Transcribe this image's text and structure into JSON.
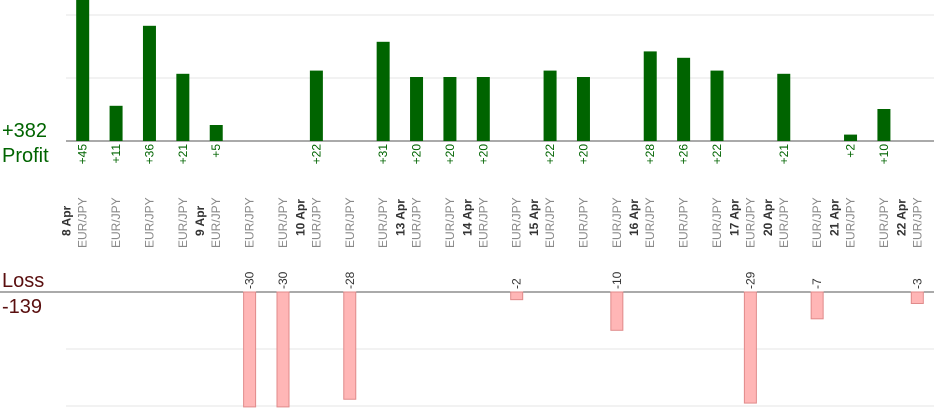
{
  "summary": {
    "profit_total": "+382",
    "profit_label": "Profit",
    "loss_label": "Loss",
    "loss_total": "-139"
  },
  "chart_data": {
    "type": "bar",
    "title": "",
    "colors": {
      "profit": "#006400",
      "loss": "#ffb6b6",
      "loss_border": "#e08a8a",
      "axis": "#555555",
      "grid": "#e6e6e6"
    },
    "columns": [
      {
        "date": "8 Apr",
        "pair": "EUR/JPY",
        "profit": 45,
        "label": "+45"
      },
      {
        "date": "",
        "pair": "EUR/JPY",
        "profit": 11,
        "label": "+11"
      },
      {
        "date": "",
        "pair": "EUR/JPY",
        "profit": 36,
        "label": "+36"
      },
      {
        "date": "",
        "pair": "EUR/JPY",
        "profit": 21,
        "label": "+21"
      },
      {
        "date": "9 Apr",
        "pair": "EUR/JPY",
        "profit": 5,
        "label": "+5"
      },
      {
        "date": "",
        "pair": "EUR/JPY",
        "loss": -30,
        "label": "-30"
      },
      {
        "date": "",
        "pair": "EUR/JPY",
        "loss": -30,
        "label": "-30"
      },
      {
        "date": "10 Apr",
        "pair": "EUR/JPY",
        "profit": 22,
        "label": "+22"
      },
      {
        "date": "",
        "pair": "EUR/JPY",
        "loss": -28,
        "label": "-28"
      },
      {
        "date": "",
        "pair": "EUR/JPY",
        "profit": 31,
        "label": "+31"
      },
      {
        "date": "13 Apr",
        "pair": "EUR/JPY",
        "profit": 20,
        "label": "+20"
      },
      {
        "date": "",
        "pair": "EUR/JPY",
        "profit": 20,
        "label": "+20"
      },
      {
        "date": "14 Apr",
        "pair": "EUR/JPY",
        "profit": 20,
        "label": "+20"
      },
      {
        "date": "",
        "pair": "EUR/JPY",
        "loss": -2,
        "label": "-2"
      },
      {
        "date": "15 Apr",
        "pair": "EUR/JPY",
        "profit": 22,
        "label": "+22"
      },
      {
        "date": "",
        "pair": "EUR/JPY",
        "profit": 20,
        "label": "+20"
      },
      {
        "date": "",
        "pair": "EUR/JPY",
        "loss": -10,
        "label": "-10"
      },
      {
        "date": "16 Apr",
        "pair": "EUR/JPY",
        "profit": 28,
        "label": "+28"
      },
      {
        "date": "",
        "pair": "EUR/JPY",
        "profit": 26,
        "label": "+26"
      },
      {
        "date": "",
        "pair": "EUR/JPY",
        "profit": 22,
        "label": "+22"
      },
      {
        "date": "17 Apr",
        "pair": "EUR/JPY",
        "loss": -29,
        "label": "-29"
      },
      {
        "date": "20 Apr",
        "pair": "EUR/JPY",
        "profit": 21,
        "label": "+21"
      },
      {
        "date": "",
        "pair": "EUR/JPY",
        "loss": -7,
        "label": "-7"
      },
      {
        "date": "21 Apr",
        "pair": "EUR/JPY",
        "profit": 2,
        "label": "+2"
      },
      {
        "date": "",
        "pair": "EUR/JPY",
        "profit": 10,
        "label": "+10"
      },
      {
        "date": "22 Apr",
        "pair": "EUR/JPY",
        "loss": -3,
        "label": "-3"
      }
    ]
  }
}
